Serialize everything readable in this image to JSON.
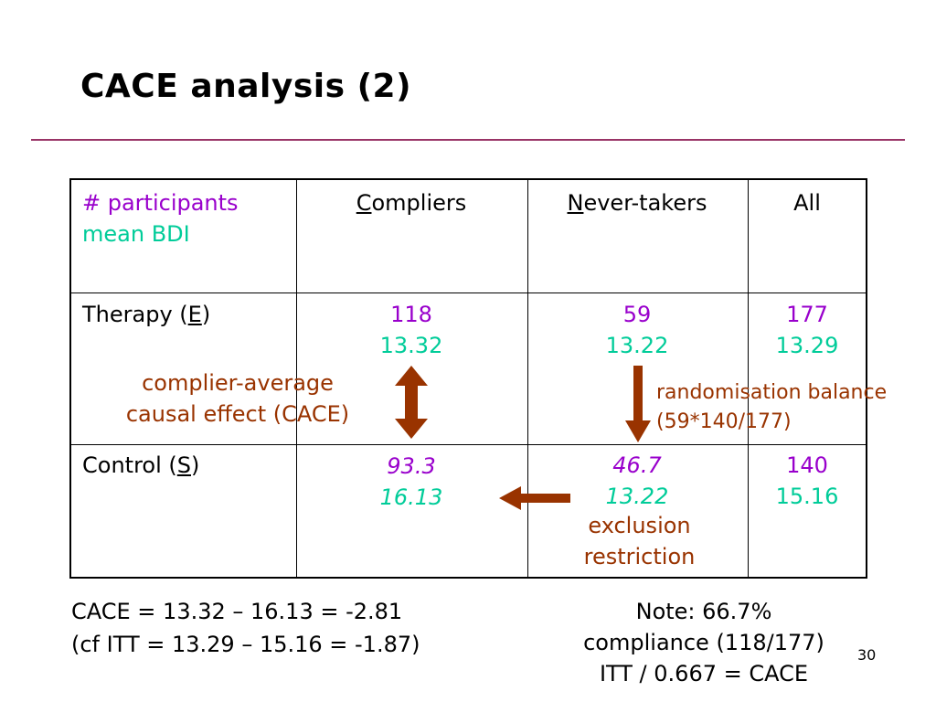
{
  "title": "CACE analysis (2)",
  "table": {
    "header": {
      "label_line1": "# participants",
      "label_line2": "mean BDI",
      "compliers_initial": "C",
      "compliers_rest": "ompliers",
      "nevertakers_initial": "N",
      "nevertakers_rest": "ever-takers",
      "all": "All"
    },
    "therapy": {
      "label_pre": "Therapy (",
      "label_letter": "E",
      "label_post": ")",
      "compliers_n": "118",
      "compliers_mean": "13.32",
      "nevertakers_n": "59",
      "nevertakers_mean": "13.22",
      "all_n": "177",
      "all_mean": "13.29"
    },
    "control": {
      "label_pre": "Control (",
      "label_letter": "S",
      "label_post": ")",
      "compliers_n": "93.3",
      "compliers_mean": "16.13",
      "nevertakers_n": "46.7",
      "nevertakers_mean": "13.22",
      "all_n": "140",
      "all_mean": "15.16"
    }
  },
  "annotations": {
    "cace_line1": "complier-average",
    "cace_line2": "causal effect (CACE)",
    "rand_line1": "randomisation balance",
    "rand_line2": "(59*140/177)",
    "excl_line1": "exclusion",
    "excl_line2": "restriction"
  },
  "footer": {
    "cace_line1": "CACE = 13.32 – 16.13 = -2.81",
    "cace_line2": "(cf ITT = 13.29 – 15.16 = -1.87)",
    "note_line1": "Note: 66.7%",
    "note_line2": "compliance (118/177)",
    "note_line3": "ITT / 0.667 = CACE"
  },
  "page_number": "30",
  "colors": {
    "title_rule": "#993366",
    "count_text": "#9900CC",
    "mean_text": "#00CC99",
    "annotation_text": "#993300",
    "arrow_fill": "#993300"
  }
}
